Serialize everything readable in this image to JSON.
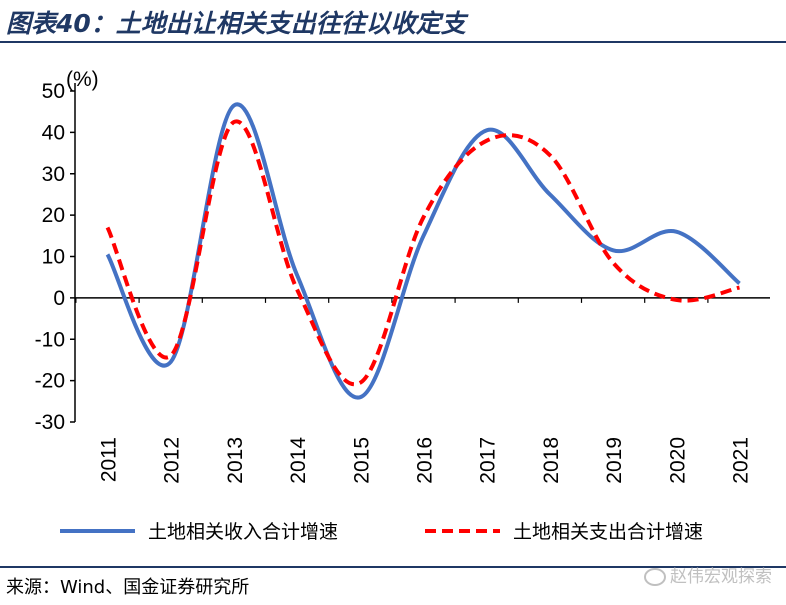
{
  "title": "图表40：土地出让相关支出往往以收定支",
  "source": "来源：Wind、国金证券研究所",
  "watermark": "赵伟宏观探索",
  "colors": {
    "title": "#1f3864",
    "income": "#4472c4",
    "expense": "#ff0000"
  },
  "chart_data": {
    "type": "line",
    "unit_label": "(%)",
    "x": [
      "2011",
      "2012",
      "2013",
      "2014",
      "2015",
      "2016",
      "2017",
      "2018",
      "2019",
      "2020",
      "2021"
    ],
    "ylim": [
      -30,
      50
    ],
    "yticks": [
      "50",
      "40",
      "30",
      "20",
      "10",
      "0",
      "-10",
      "-20",
      "-30"
    ],
    "series": [
      {
        "name": "土地相关收入合计增速",
        "values": [
          10.5,
          -15.5,
          46.5,
          5.5,
          -24.0,
          15.0,
          40.5,
          25.0,
          11.5,
          16.0,
          3.5
        ],
        "style": "solid",
        "color": "#4472c4"
      },
      {
        "name": "土地相关支出合计增速",
        "values": [
          17.0,
          -14.0,
          42.5,
          2.0,
          -20.5,
          19.5,
          38.0,
          34.5,
          8.5,
          -0.5,
          2.5
        ],
        "style": "dashed",
        "color": "#ff0000"
      }
    ],
    "legend_position": "bottom"
  }
}
